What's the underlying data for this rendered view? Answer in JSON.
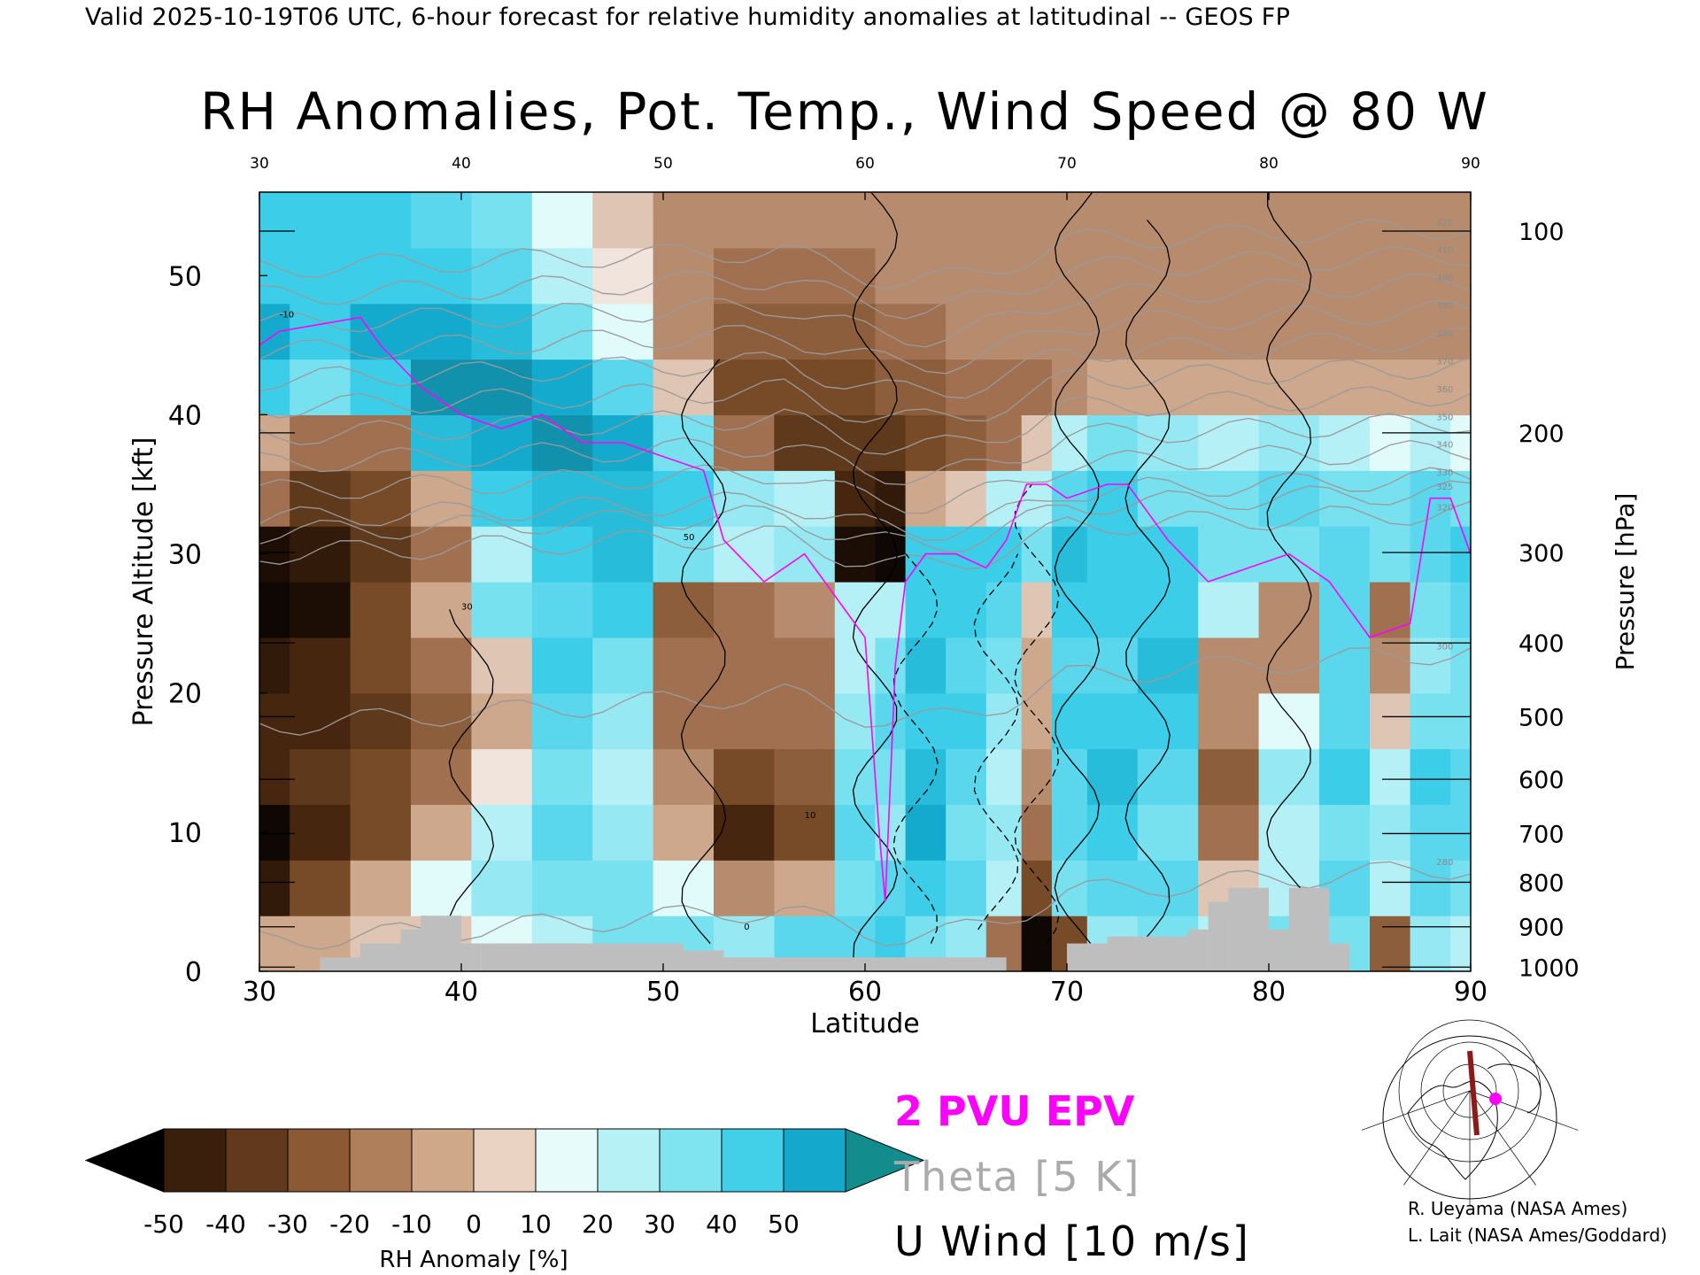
{
  "header": {
    "caption": "Valid 2025-10-19T06 UTC, 6-hour forecast for relative humidity anomalies at latitudinal -- GEOS FP",
    "title": "RH Anomalies, Pot. Temp., Wind Speed @ 80 W"
  },
  "chart_data": {
    "type": "heatmap",
    "title": "RH Anomalies, Pot. Temp., Wind Speed @ 80 W",
    "xlabel": "Latitude",
    "ylabel": "Pressure Altitude [kft]",
    "ylabel_right": "Pressure [hPa]",
    "xlim": [
      30,
      90
    ],
    "ylim": [
      0,
      56
    ],
    "x_ticks": [
      30,
      40,
      50,
      60,
      70,
      80,
      90
    ],
    "y_ticks": [
      0,
      10,
      20,
      30,
      40,
      50
    ],
    "pressure_ticks": [
      {
        "label": "100",
        "kft": 53.2
      },
      {
        "label": "200",
        "kft": 38.7
      },
      {
        "label": "300",
        "kft": 30.1
      },
      {
        "label": "400",
        "kft": 23.6
      },
      {
        "label": "500",
        "kft": 18.3
      },
      {
        "label": "600",
        "kft": 13.8
      },
      {
        "label": "700",
        "kft": 9.9
      },
      {
        "label": "800",
        "kft": 6.4
      },
      {
        "label": "900",
        "kft": 3.2
      },
      {
        "label": "1000",
        "kft": 0.3
      }
    ],
    "rh_anomaly_columns": {
      "lats": [
        30,
        33,
        36,
        39,
        42,
        45,
        48,
        51,
        54,
        57,
        60,
        61,
        63,
        65,
        67,
        68.5,
        70,
        72,
        75,
        78,
        81,
        84,
        86,
        88,
        90
      ],
      "alt_levels_kft": [
        2,
        6,
        10,
        14,
        18,
        22,
        26,
        30,
        34,
        38,
        42,
        46,
        50,
        54
      ],
      "values": [
        [
          -10,
          -45,
          -55,
          -40,
          -40,
          -45,
          -55,
          -50,
          -20,
          -10,
          30,
          40,
          30,
          30
        ],
        [
          -10,
          -30,
          -40,
          -35,
          -40,
          -40,
          -50,
          -45,
          -35,
          -20,
          20,
          30,
          30,
          30
        ],
        [
          -5,
          -10,
          -30,
          -30,
          -35,
          -30,
          -30,
          -35,
          -30,
          -20,
          30,
          40,
          30,
          30
        ],
        [
          -5,
          5,
          -10,
          -20,
          -25,
          -20,
          -10,
          -20,
          -10,
          35,
          45,
          40,
          30,
          25
        ],
        [
          5,
          15,
          10,
          0,
          -10,
          -5,
          20,
          10,
          30,
          40,
          45,
          35,
          25,
          20
        ],
        [
          10,
          20,
          25,
          20,
          25,
          30,
          25,
          30,
          35,
          45,
          40,
          20,
          10,
          5
        ],
        [
          20,
          20,
          15,
          10,
          15,
          20,
          30,
          35,
          35,
          40,
          25,
          5,
          0,
          -5
        ],
        [
          20,
          5,
          -10,
          -15,
          -20,
          -20,
          -25,
          20,
          30,
          20,
          -5,
          -15,
          -15,
          -15
        ],
        [
          15,
          -15,
          -40,
          -30,
          -20,
          -20,
          -20,
          10,
          15,
          -20,
          -30,
          -25,
          -20,
          -15
        ],
        [
          25,
          -10,
          -30,
          -25,
          -20,
          -20,
          -15,
          15,
          10,
          -35,
          -30,
          -25,
          -20,
          -15
        ],
        [
          25,
          20,
          25,
          20,
          15,
          10,
          10,
          -50,
          -40,
          -35,
          -30,
          -25,
          -20,
          -15
        ],
        [
          30,
          25,
          15,
          20,
          25,
          20,
          10,
          -55,
          -45,
          -35,
          -25,
          -20,
          -15,
          -15
        ],
        [
          20,
          30,
          40,
          35,
          30,
          35,
          30,
          30,
          -10,
          -30,
          -25,
          -20,
          -15,
          -15
        ],
        [
          15,
          25,
          20,
          25,
          30,
          25,
          30,
          30,
          -5,
          -25,
          -20,
          -15,
          -15,
          -15
        ],
        [
          -20,
          10,
          15,
          10,
          15,
          20,
          25,
          30,
          10,
          -20,
          -20,
          -15,
          -15,
          -15
        ],
        [
          -55,
          -30,
          -20,
          -15,
          -10,
          -10,
          -5,
          20,
          10,
          -5,
          -20,
          -15,
          -15,
          -15
        ],
        [
          -30,
          20,
          25,
          25,
          30,
          25,
          30,
          35,
          25,
          10,
          -15,
          -15,
          -15,
          -15
        ],
        [
          15,
          25,
          30,
          35,
          30,
          25,
          30,
          30,
          30,
          20,
          -10,
          -15,
          -15,
          -15
        ],
        [
          20,
          25,
          20,
          25,
          30,
          35,
          30,
          30,
          20,
          15,
          -10,
          -15,
          -15,
          -15
        ],
        [
          10,
          -5,
          -20,
          -25,
          -15,
          -15,
          10,
          20,
          20,
          10,
          -10,
          -15,
          -15,
          -15
        ],
        [
          20,
          10,
          10,
          15,
          5,
          -15,
          -15,
          20,
          25,
          15,
          -10,
          -15,
          -15,
          -15
        ],
        [
          20,
          25,
          20,
          30,
          25,
          25,
          25,
          25,
          20,
          10,
          -10,
          -15,
          -15,
          -15
        ],
        [
          -25,
          10,
          15,
          10,
          -5,
          -15,
          -20,
          20,
          20,
          5,
          -10,
          -15,
          -15,
          -15
        ],
        [
          15,
          25,
          25,
          30,
          20,
          15,
          20,
          25,
          25,
          10,
          -10,
          -15,
          -15,
          -15
        ],
        [
          10,
          20,
          25,
          25,
          20,
          20,
          25,
          30,
          20,
          5,
          -10,
          -15,
          -15,
          -15
        ]
      ]
    },
    "epv_2pvu": {
      "name": "2 PVU EPV",
      "points": [
        [
          30,
          45
        ],
        [
          31,
          46
        ],
        [
          33,
          46.5
        ],
        [
          35,
          47
        ],
        [
          36,
          45
        ],
        [
          38,
          42
        ],
        [
          40,
          40
        ],
        [
          42,
          39
        ],
        [
          44,
          40
        ],
        [
          46,
          38
        ],
        [
          48,
          38
        ],
        [
          50,
          37
        ],
        [
          52,
          36
        ],
        [
          53,
          31
        ],
        [
          55,
          28
        ],
        [
          57,
          30
        ],
        [
          58,
          28
        ],
        [
          59,
          26
        ],
        [
          60,
          24
        ],
        [
          60.7,
          10
        ],
        [
          61,
          5
        ],
        [
          61.5,
          22
        ],
        [
          62,
          28
        ],
        [
          63,
          30
        ],
        [
          64.5,
          30
        ],
        [
          66,
          29
        ],
        [
          67,
          31
        ],
        [
          68,
          35
        ],
        [
          69,
          35
        ],
        [
          70,
          34
        ],
        [
          72,
          35
        ],
        [
          73,
          35
        ],
        [
          75,
          31
        ],
        [
          77,
          28
        ],
        [
          79,
          29
        ],
        [
          81,
          30
        ],
        [
          83,
          28
        ],
        [
          85,
          24
        ],
        [
          87,
          25
        ],
        [
          88,
          34
        ],
        [
          89,
          34
        ],
        [
          90,
          30
        ]
      ]
    },
    "theta_contours": {
      "name": "Theta [5 K]",
      "labels": [
        "280",
        "300",
        "320",
        "325",
        "330",
        "340",
        "350",
        "360",
        "370",
        "380",
        "390",
        "400",
        "410",
        "420"
      ],
      "levels_kft_at_lat90": [
        7.5,
        23,
        33,
        34.5,
        35.5,
        37.5,
        39.5,
        41.5,
        43.5,
        45.5,
        47.5,
        49.5,
        51.5,
        53.5
      ]
    },
    "u_wind_contours": {
      "name": "U Wind [10 m/s]",
      "labels": [
        "-10",
        "0",
        "10",
        "30",
        "50"
      ],
      "solid_at_lat": [
        [
          40.5,
          1,
          26
        ],
        [
          52,
          2,
          44
        ],
        [
          60.5,
          1,
          56
        ],
        [
          70.5,
          2,
          56
        ],
        [
          74,
          2,
          54
        ],
        [
          81,
          2,
          56
        ]
      ],
      "dashed_at_lat": [
        [
          62.5,
          2,
          30
        ],
        [
          66.5,
          3,
          30
        ],
        [
          68.5,
          2,
          35
        ]
      ]
    },
    "terrain_blocks": [
      [
        33,
        35,
        1
      ],
      [
        35,
        37,
        2
      ],
      [
        37,
        38,
        3
      ],
      [
        38,
        40,
        4
      ],
      [
        40,
        41,
        2
      ],
      [
        41,
        51,
        2
      ],
      [
        51,
        53,
        1.5
      ],
      [
        53,
        67,
        1
      ],
      [
        70,
        72,
        2
      ],
      [
        72,
        76,
        2.5
      ],
      [
        76,
        77,
        3
      ],
      [
        77,
        78,
        5
      ],
      [
        78,
        80,
        6
      ],
      [
        80,
        81,
        3
      ],
      [
        81,
        83,
        6
      ],
      [
        83,
        84,
        2
      ]
    ],
    "colorbar": {
      "label": "RH Anomaly [%]",
      "tick_labels": [
        "-50",
        "-40",
        "-30",
        "-20",
        "-10",
        "0",
        "10",
        "20",
        "30",
        "40",
        "50"
      ],
      "colors": [
        "#000000",
        "#3a1f0d",
        "#62391d",
        "#8b5a34",
        "#ae7f5a",
        "#cfa88a",
        "#ead3c3",
        "#e8fbfb",
        "#b5f1f5",
        "#80e3f0",
        "#42cfe8",
        "#13a8cc",
        "#128c8c"
      ]
    },
    "legend": [
      "2 PVU EPV",
      "Theta [5 K]",
      "U Wind [10 m/s]"
    ],
    "grid": false
  },
  "inset_map": {
    "marker": "magenta-dot",
    "line_color": "#8b1a1a"
  },
  "credits": [
    "R. Ueyama (NASA Ames)",
    "L. Lait (NASA Ames/Goddard)"
  ]
}
